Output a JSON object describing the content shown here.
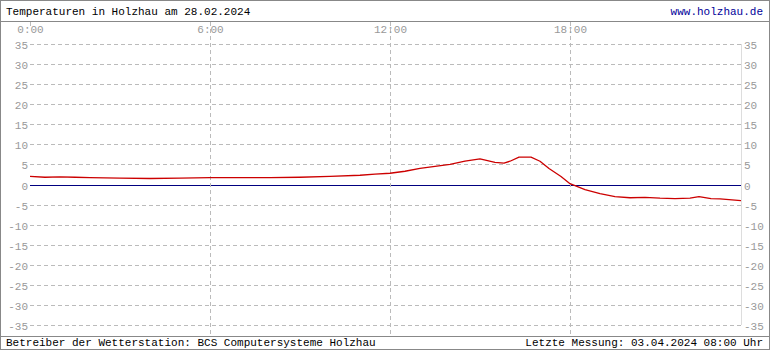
{
  "chart_data": {
    "type": "line",
    "title": "Temperaturen in Holzhau am 28.02.2024",
    "link": "www.holzhau.de",
    "footer_left": "Betreiber der Wetterstation: BCS Computersysteme Holzhau",
    "footer_right": "Letzte Messung: 03.04.2024 08:00 Uhr",
    "x": [
      0,
      0.5,
      1,
      1.5,
      2,
      3,
      4,
      5,
      6,
      7,
      8,
      9,
      10,
      11,
      11.5,
      12,
      12.5,
      13,
      13.5,
      14,
      14.5,
      15,
      15.5,
      15.8,
      16,
      16.3,
      16.7,
      17,
      17.3,
      17.7,
      18,
      18.5,
      19,
      19.5,
      20,
      20.5,
      21,
      21.5,
      22,
      22.3,
      22.7,
      23,
      23.5,
      23.7
    ],
    "series": [
      {
        "name": "Temperatur",
        "color": "#cc0000",
        "values": [
          2.0,
          1.8,
          1.9,
          1.8,
          1.7,
          1.6,
          1.5,
          1.6,
          1.7,
          1.7,
          1.7,
          1.8,
          2.0,
          2.3,
          2.6,
          2.8,
          3.3,
          4.0,
          4.5,
          5.0,
          5.8,
          6.4,
          5.5,
          5.3,
          5.8,
          6.8,
          6.8,
          5.8,
          4.0,
          2.0,
          0.2,
          -1.3,
          -2.3,
          -3.0,
          -3.3,
          -3.2,
          -3.4,
          -3.5,
          -3.4,
          -3.0,
          -3.5,
          -3.6,
          -3.9,
          -4.0
        ]
      }
    ],
    "xlim": [
      0,
      23.7
    ],
    "xticks": [
      {
        "value": 0,
        "label": "0:00"
      },
      {
        "value": 6,
        "label": "6:00"
      },
      {
        "value": 12,
        "label": "12:00"
      },
      {
        "value": 18,
        "label": "18:00"
      }
    ],
    "ylim": [
      -35,
      35
    ],
    "yticks": [
      -35,
      -30,
      -25,
      -20,
      -15,
      -10,
      -5,
      0,
      5,
      10,
      15,
      20,
      25,
      30,
      35
    ],
    "grid": true
  }
}
